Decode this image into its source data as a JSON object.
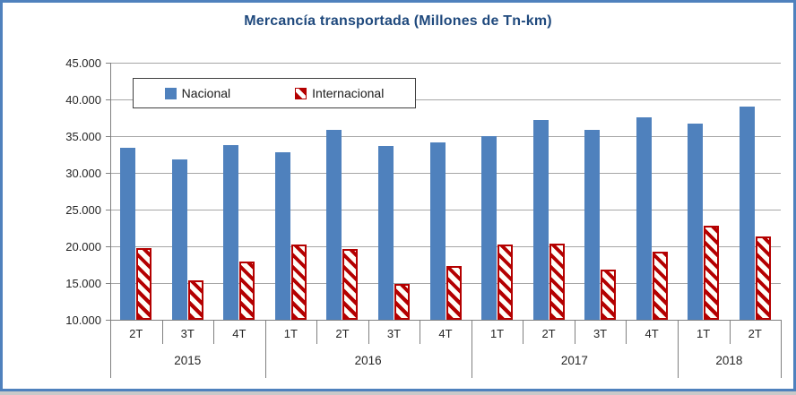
{
  "title": "Mercancía transportada (Millones de Tn-km)",
  "legend": {
    "items": [
      {
        "label": "Nacional",
        "swatch": "solid-blue-square-icon"
      },
      {
        "label": "Internacional",
        "swatch": "hatched-red-square-icon"
      }
    ]
  },
  "colors": {
    "frame_border": "#4f81bd",
    "title": "#1f497d",
    "nacional_bar": "#4f81bd",
    "internacional_stripe": "#b40000",
    "gridline": "#a6a6a6",
    "axis": "#808080"
  },
  "chart_data": {
    "type": "bar",
    "title": "Mercancía transportada (Millones de Tn-km)",
    "categories": [
      "2T",
      "3T",
      "4T",
      "1T",
      "2T",
      "3T",
      "4T",
      "1T",
      "2T",
      "3T",
      "4T",
      "1T",
      "2T"
    ],
    "year_groups": [
      {
        "label": "2015",
        "quarters": 3
      },
      {
        "label": "2016",
        "quarters": 4
      },
      {
        "label": "2017",
        "quarters": 4
      },
      {
        "label": "2018",
        "quarters": 2
      }
    ],
    "series": [
      {
        "name": "Nacional",
        "values": [
          33400,
          31800,
          33800,
          32800,
          35800,
          33700,
          34100,
          35000,
          37200,
          35900,
          37600,
          36700,
          39000
        ]
      },
      {
        "name": "Internacional",
        "values": [
          19800,
          15400,
          17900,
          20300,
          19600,
          14900,
          17300,
          20200,
          20400,
          16800,
          19300,
          22800,
          21300
        ]
      }
    ],
    "ylim": [
      10000,
      45000
    ],
    "ytick_step": 5000,
    "ytick_labels_top_to_bottom": [
      "45.000",
      "40.000",
      "35.000",
      "30.000",
      "25.000",
      "20.000",
      "15.000",
      "10.000"
    ],
    "xlabel": "",
    "ylabel": "",
    "grid": "horizontal",
    "legend_position": "inside-top-left"
  }
}
